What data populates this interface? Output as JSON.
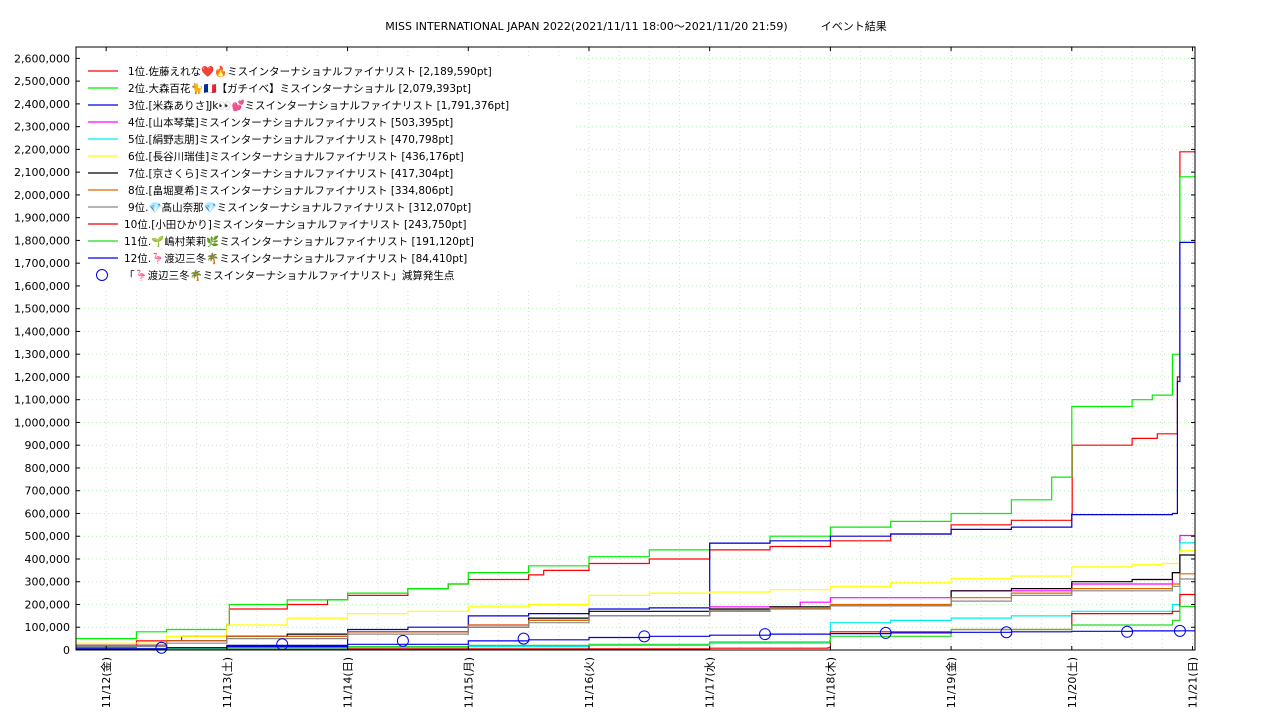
{
  "chart_data": {
    "type": "line",
    "title": "MISS INTERNATIONAL JAPAN 2022(2021/11/11 18:00～2021/11/20 21:59)　　　イベント結果",
    "xlabel": "",
    "ylabel": "",
    "ylim": [
      0,
      2650000
    ],
    "yticks": [
      "0",
      "100,000",
      "200,000",
      "300,000",
      "400,000",
      "500,000",
      "600,000",
      "700,000",
      "800,000",
      "900,000",
      "1,000,000",
      "1,100,000",
      "1,200,000",
      "1,300,000",
      "1,400,000",
      "1,500,000",
      "1,600,000",
      "1,700,000",
      "1,800,000",
      "1,900,000",
      "2,000,000",
      "2,100,000",
      "2,200,000",
      "2,300,000",
      "2,400,000",
      "2,500,000",
      "2,600,000"
    ],
    "xticks": [
      "11/12(金)",
      "11/13(土)",
      "11/14(日)",
      "11/15(月)",
      "11/16(火)",
      "11/17(水)",
      "11/18(木)",
      "11/19(金)",
      "11/20(土)",
      "11/21(日)"
    ],
    "x_range": [
      "2021-11-11 18:00",
      "2021-11-21 00:30"
    ],
    "grid": true,
    "legend_position": "top-left",
    "series": [
      {
        "name": "1位.佐藤えれな❤️🔥ミスインターナショナルファイナリスト [2,189,590pt]",
        "color": "#ff0000",
        "points": [
          [
            "2021-11-11 18:00",
            10000
          ],
          [
            "2021-11-12 06:00",
            40000
          ],
          [
            "2021-11-12 15:00",
            60000
          ],
          [
            "2021-11-13 00:00",
            110000
          ],
          [
            "2021-11-13 00:30",
            180000
          ],
          [
            "2021-11-13 12:00",
            200000
          ],
          [
            "2021-11-13 20:00",
            220000
          ],
          [
            "2021-11-14 00:00",
            240000
          ],
          [
            "2021-11-14 12:00",
            270000
          ],
          [
            "2021-11-14 20:00",
            290000
          ],
          [
            "2021-11-15 00:00",
            310000
          ],
          [
            "2021-11-15 12:00",
            330000
          ],
          [
            "2021-11-15 15:00",
            350000
          ],
          [
            "2021-11-16 00:00",
            380000
          ],
          [
            "2021-11-16 12:00",
            400000
          ],
          [
            "2021-11-17 00:00",
            440000
          ],
          [
            "2021-11-17 12:00",
            455000
          ],
          [
            "2021-11-18 00:00",
            480000
          ],
          [
            "2021-11-18 12:00",
            510000
          ],
          [
            "2021-11-19 00:00",
            550000
          ],
          [
            "2021-11-19 12:00",
            570000
          ],
          [
            "2021-11-20 00:00",
            600000
          ],
          [
            "2021-11-20 00:05",
            900000
          ],
          [
            "2021-11-20 12:00",
            930000
          ],
          [
            "2021-11-20 17:00",
            950000
          ],
          [
            "2021-11-20 21:00",
            1200000
          ],
          [
            "2021-11-20 21:30",
            2189590
          ]
        ]
      },
      {
        "name": "2位.大森百花🐈🇫🇷【ガチイベ】ミスインターナショナル [2,079,393pt]",
        "color": "#00ee00",
        "points": [
          [
            "2021-11-11 18:00",
            50000
          ],
          [
            "2021-11-12 06:00",
            80000
          ],
          [
            "2021-11-12 12:00",
            90000
          ],
          [
            "2021-11-13 00:00",
            110000
          ],
          [
            "2021-11-13 00:30",
            200000
          ],
          [
            "2021-11-13 12:00",
            220000
          ],
          [
            "2021-11-14 00:00",
            250000
          ],
          [
            "2021-11-14 12:00",
            270000
          ],
          [
            "2021-11-14 20:00",
            290000
          ],
          [
            "2021-11-15 00:00",
            340000
          ],
          [
            "2021-11-15 12:00",
            370000
          ],
          [
            "2021-11-16 00:00",
            410000
          ],
          [
            "2021-11-16 12:00",
            440000
          ],
          [
            "2021-11-17 00:00",
            470000
          ],
          [
            "2021-11-17 12:00",
            500000
          ],
          [
            "2021-11-18 00:00",
            540000
          ],
          [
            "2021-11-18 12:00",
            565000
          ],
          [
            "2021-11-19 00:00",
            600000
          ],
          [
            "2021-11-19 12:00",
            660000
          ],
          [
            "2021-11-19 20:00",
            760000
          ],
          [
            "2021-11-20 00:00",
            1070000
          ],
          [
            "2021-11-20 12:00",
            1100000
          ],
          [
            "2021-11-20 16:00",
            1120000
          ],
          [
            "2021-11-20 20:00",
            1300000
          ],
          [
            "2021-11-20 21:30",
            2079393
          ]
        ]
      },
      {
        "name": "3位.[米森ありさ]Jk👀💕ミスインターナショナルファイナリスト [1,791,376pt]",
        "color": "#0000dd",
        "points": [
          [
            "2021-11-11 18:00",
            5000
          ],
          [
            "2021-11-12 12:00",
            10000
          ],
          [
            "2021-11-13 00:00",
            20000
          ],
          [
            "2021-11-14 00:00",
            90000
          ],
          [
            "2021-11-14 12:00",
            100000
          ],
          [
            "2021-11-15 00:00",
            150000
          ],
          [
            "2021-11-15 12:00",
            160000
          ],
          [
            "2021-11-16 00:00",
            180000
          ],
          [
            "2021-11-16 12:00",
            185000
          ],
          [
            "2021-11-17 00:00",
            470000
          ],
          [
            "2021-11-17 12:00",
            480000
          ],
          [
            "2021-11-18 00:00",
            500000
          ],
          [
            "2021-11-18 12:00",
            510000
          ],
          [
            "2021-11-19 00:00",
            530000
          ],
          [
            "2021-11-19 12:00",
            540000
          ],
          [
            "2021-11-20 00:00",
            595000
          ],
          [
            "2021-11-20 20:00",
            600000
          ],
          [
            "2021-11-20 21:00",
            1180000
          ],
          [
            "2021-11-20 21:30",
            1791376
          ]
        ]
      },
      {
        "name": "4位.[山本琴葉]ミスインターナショナルファイナリスト [503,395pt]",
        "color": "#ff00ff",
        "points": [
          [
            "2021-11-11 18:00",
            20000
          ],
          [
            "2021-11-12 12:00",
            40000
          ],
          [
            "2021-11-13 00:00",
            60000
          ],
          [
            "2021-11-14 00:00",
            80000
          ],
          [
            "2021-11-15 00:00",
            110000
          ],
          [
            "2021-11-15 12:00",
            130000
          ],
          [
            "2021-11-16 00:00",
            150000
          ],
          [
            "2021-11-17 00:00",
            190000
          ],
          [
            "2021-11-17 18:00",
            210000
          ],
          [
            "2021-11-18 00:00",
            230000
          ],
          [
            "2021-11-19 00:00",
            260000
          ],
          [
            "2021-11-20 00:00",
            290000
          ],
          [
            "2021-11-20 20:00",
            340000
          ],
          [
            "2021-11-20 21:30",
            503395
          ]
        ]
      },
      {
        "name": "5位.[絹野志朋]ミスインターナショナルファイナリスト [470,798pt]",
        "color": "#00eeee",
        "points": [
          [
            "2021-11-11 18:00",
            2000
          ],
          [
            "2021-11-13 00:00",
            5000
          ],
          [
            "2021-11-14 00:00",
            10000
          ],
          [
            "2021-11-15 00:00",
            15000
          ],
          [
            "2021-11-16 00:00",
            20000
          ],
          [
            "2021-11-17 00:00",
            30000
          ],
          [
            "2021-11-17 23:50",
            40000
          ],
          [
            "2021-11-18 00:00",
            120000
          ],
          [
            "2021-11-18 12:00",
            130000
          ],
          [
            "2021-11-19 00:00",
            140000
          ],
          [
            "2021-11-19 12:00",
            150000
          ],
          [
            "2021-11-20 00:00",
            170000
          ],
          [
            "2021-11-20 20:00",
            200000
          ],
          [
            "2021-11-20 21:30",
            470798
          ]
        ]
      },
      {
        "name": "6位.[長谷川瑞佳]ミスインターナショナルファイナリスト [436,176pt]",
        "color": "#ffff00",
        "points": [
          [
            "2021-11-11 18:00",
            30000
          ],
          [
            "2021-11-12 12:00",
            60000
          ],
          [
            "2021-11-13 00:00",
            110000
          ],
          [
            "2021-11-13 12:00",
            140000
          ],
          [
            "2021-11-14 00:00",
            160000
          ],
          [
            "2021-11-14 12:00",
            170000
          ],
          [
            "2021-11-15 00:00",
            190000
          ],
          [
            "2021-11-15 12:00",
            200000
          ],
          [
            "2021-11-16 00:00",
            240000
          ],
          [
            "2021-11-16 12:00",
            250000
          ],
          [
            "2021-11-17 00:00",
            255000
          ],
          [
            "2021-11-17 12:00",
            265000
          ],
          [
            "2021-11-18 00:00",
            280000
          ],
          [
            "2021-11-18 12:00",
            295000
          ],
          [
            "2021-11-19 00:00",
            315000
          ],
          [
            "2021-11-19 12:00",
            325000
          ],
          [
            "2021-11-20 00:00",
            365000
          ],
          [
            "2021-11-20 12:00",
            375000
          ],
          [
            "2021-11-20 18:00",
            380000
          ],
          [
            "2021-11-20 21:30",
            436176
          ]
        ]
      },
      {
        "name": "7位.[京さくら]ミスインターナショナルファイナリスト [417,304pt]",
        "color": "#000000",
        "points": [
          [
            "2021-11-11 18:00",
            20000
          ],
          [
            "2021-11-12 12:00",
            40000
          ],
          [
            "2021-11-13 00:00",
            60000
          ],
          [
            "2021-11-13 12:00",
            70000
          ],
          [
            "2021-11-14 00:00",
            80000
          ],
          [
            "2021-11-15 00:00",
            100000
          ],
          [
            "2021-11-15 12:00",
            140000
          ],
          [
            "2021-11-16 00:00",
            170000
          ],
          [
            "2021-11-17 00:00",
            180000
          ],
          [
            "2021-11-17 12:00",
            190000
          ],
          [
            "2021-11-18 00:00",
            195000
          ],
          [
            "2021-11-19 00:00",
            260000
          ],
          [
            "2021-11-19 12:00",
            270000
          ],
          [
            "2021-11-20 00:00",
            300000
          ],
          [
            "2021-11-20 12:00",
            310000
          ],
          [
            "2021-11-20 20:00",
            340000
          ],
          [
            "2021-11-20 21:30",
            417304
          ]
        ]
      },
      {
        "name": "8位.[畠堀夏希]ミスインターナショナルファイナリスト [334,806pt]",
        "color": "#dd6600",
        "points": [
          [
            "2021-11-11 18:00",
            20000
          ],
          [
            "2021-11-12 12:00",
            40000
          ],
          [
            "2021-11-13 00:00",
            60000
          ],
          [
            "2021-11-14 00:00",
            80000
          ],
          [
            "2021-11-15 00:00",
            110000
          ],
          [
            "2021-11-15 12:00",
            130000
          ],
          [
            "2021-11-16 00:00",
            150000
          ],
          [
            "2021-11-17 00:00",
            170000
          ],
          [
            "2021-11-17 12:00",
            180000
          ],
          [
            "2021-11-18 00:00",
            200000
          ],
          [
            "2021-11-19 00:00",
            230000
          ],
          [
            "2021-11-19 12:00",
            250000
          ],
          [
            "2021-11-20 00:00",
            270000
          ],
          [
            "2021-11-20 20:00",
            290000
          ],
          [
            "2021-11-20 21:30",
            334806
          ]
        ]
      },
      {
        "name": "9位.💎髙山奈那💎ミスインターナショナルファイナリスト [312,070pt]",
        "color": "#888888",
        "points": [
          [
            "2021-11-11 18:00",
            15000
          ],
          [
            "2021-11-12 12:00",
            30000
          ],
          [
            "2021-11-13 00:00",
            50000
          ],
          [
            "2021-11-14 00:00",
            70000
          ],
          [
            "2021-11-15 00:00",
            100000
          ],
          [
            "2021-11-15 12:00",
            120000
          ],
          [
            "2021-11-16 00:00",
            150000
          ],
          [
            "2021-11-17 00:00",
            175000
          ],
          [
            "2021-11-17 12:00",
            185000
          ],
          [
            "2021-11-18 00:00",
            195000
          ],
          [
            "2021-11-19 00:00",
            215000
          ],
          [
            "2021-11-19 12:00",
            240000
          ],
          [
            "2021-11-20 00:00",
            260000
          ],
          [
            "2021-11-20 20:00",
            280000
          ],
          [
            "2021-11-20 21:30",
            312070
          ]
        ]
      },
      {
        "name": "10位.[小田ひかり]ミスインターナショナルファイナリスト [243,750pt]",
        "color": "#ee0000",
        "points": [
          [
            "2021-11-11 18:00",
            3000
          ],
          [
            "2021-11-14 00:00",
            5000
          ],
          [
            "2021-11-17 00:00",
            8000
          ],
          [
            "2021-11-17 23:30",
            10000
          ],
          [
            "2021-11-18 00:00",
            80000
          ],
          [
            "2021-11-19 00:00",
            90000
          ],
          [
            "2021-11-20 00:00",
            160000
          ],
          [
            "2021-11-20 20:00",
            170000
          ],
          [
            "2021-11-20 21:30",
            243750
          ]
        ]
      },
      {
        "name": "11位.🌱嶋村茉莉🌿ミスインターナショナルファイナリスト [191,120pt]",
        "color": "#22dd22",
        "points": [
          [
            "2021-11-11 18:00",
            5000
          ],
          [
            "2021-11-13 00:00",
            10000
          ],
          [
            "2021-11-14 00:00",
            15000
          ],
          [
            "2021-11-15 00:00",
            20000
          ],
          [
            "2021-11-16 00:00",
            25000
          ],
          [
            "2021-11-17 00:00",
            35000
          ],
          [
            "2021-11-18 00:00",
            60000
          ],
          [
            "2021-11-19 00:00",
            90000
          ],
          [
            "2021-11-20 00:00",
            110000
          ],
          [
            "2021-11-20 20:00",
            130000
          ],
          [
            "2021-11-20 21:30",
            191120
          ]
        ]
      },
      {
        "name": "12位.🦩渡辺三冬🌴ミスインターナショナルファイナリスト [84,410pt]",
        "color": "#0000ee",
        "points": [
          [
            "2021-11-11 18:00",
            5000
          ],
          [
            "2021-11-12 12:00",
            10000
          ],
          [
            "2021-11-13 00:00",
            15000
          ],
          [
            "2021-11-14 00:00",
            25000
          ],
          [
            "2021-11-15 00:00",
            40000
          ],
          [
            "2021-11-15 12:00",
            45000
          ],
          [
            "2021-11-16 00:00",
            55000
          ],
          [
            "2021-11-16 12:00",
            60000
          ],
          [
            "2021-11-17 00:00",
            65000
          ],
          [
            "2021-11-17 12:00",
            70000
          ],
          [
            "2021-11-18 00:00",
            72000
          ],
          [
            "2021-11-18 12:00",
            75000
          ],
          [
            "2021-11-19 00:00",
            78000
          ],
          [
            "2021-11-19 12:00",
            80000
          ],
          [
            "2021-11-20 00:00",
            82000
          ],
          [
            "2021-11-20 12:00",
            84000
          ],
          [
            "2021-11-20 21:30",
            84410
          ]
        ]
      }
    ],
    "marker_series": {
      "name": "「🦩渡辺三冬🌴ミスインターナショナルファイナリスト」減算発生点",
      "color": "#0000ee",
      "points": [
        [
          "2021-11-12 11:00",
          10000
        ],
        [
          "2021-11-13 11:00",
          25000
        ],
        [
          "2021-11-14 11:00",
          40000
        ],
        [
          "2021-11-15 11:00",
          50000
        ],
        [
          "2021-11-16 11:00",
          60000
        ],
        [
          "2021-11-17 11:00",
          70000
        ],
        [
          "2021-11-18 11:00",
          75000
        ],
        [
          "2021-11-19 11:00",
          78000
        ],
        [
          "2021-11-20 11:00",
          80000
        ],
        [
          "2021-11-20 21:30",
          84000
        ]
      ]
    }
  }
}
